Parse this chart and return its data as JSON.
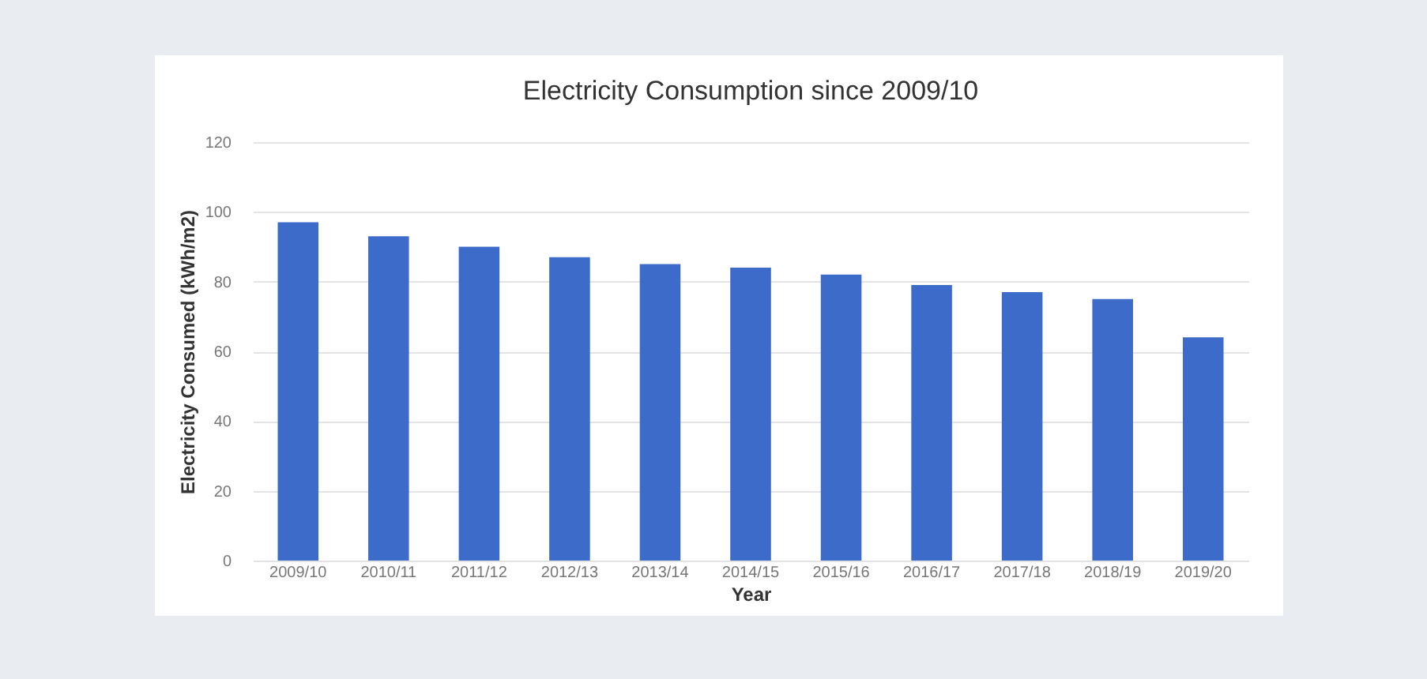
{
  "chart_data": {
    "type": "bar",
    "title": "Electricity Consumption since 2009/10",
    "xlabel": "Year",
    "ylabel": "Electricity Consumed (kWh/m2)",
    "categories": [
      "2009/10",
      "2010/11",
      "2011/12",
      "2012/13",
      "2013/14",
      "2014/15",
      "2015/16",
      "2016/17",
      "2017/18",
      "2018/19",
      "2019/20"
    ],
    "values": [
      97,
      93,
      90,
      87,
      85,
      84,
      82,
      79,
      77,
      75,
      64
    ],
    "color": "#3d6bc9",
    "ylim": [
      0,
      120
    ],
    "yticks": [
      0,
      20,
      40,
      60,
      80,
      100,
      120
    ],
    "grid": "y"
  }
}
